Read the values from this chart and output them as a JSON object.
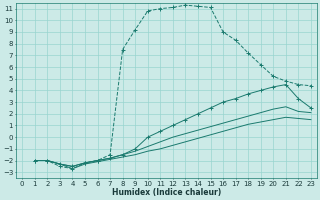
{
  "xlabel": "Humidex (Indice chaleur)",
  "bg_color": "#cceae7",
  "grid_color": "#99d5d0",
  "line_color": "#1a7a6e",
  "xlim": [
    -0.5,
    23.5
  ],
  "ylim": [
    -3.5,
    11.5
  ],
  "xticks": [
    0,
    1,
    2,
    3,
    4,
    5,
    6,
    7,
    8,
    9,
    10,
    11,
    12,
    13,
    14,
    15,
    16,
    17,
    18,
    19,
    20,
    21,
    22,
    23
  ],
  "yticks": [
    -3,
    -2,
    -1,
    0,
    1,
    2,
    3,
    4,
    5,
    6,
    7,
    8,
    9,
    10,
    11
  ],
  "curves": [
    {
      "x": [
        1,
        2,
        3,
        4,
        5,
        6,
        7,
        8,
        9,
        10,
        11,
        12,
        13,
        14,
        15,
        16,
        17,
        18,
        19,
        20,
        21,
        22,
        23
      ],
      "y": [
        -2,
        -2,
        -2.5,
        -2.7,
        -2.2,
        -2,
        -1.5,
        7.5,
        9.2,
        10.8,
        11.0,
        11.1,
        11.3,
        11.2,
        11.1,
        9.0,
        8.3,
        7.2,
        6.2,
        5.2,
        4.8,
        4.5,
        4.4
      ],
      "linestyle": "--",
      "marker": "+"
    },
    {
      "x": [
        1,
        2,
        3,
        4,
        5,
        6,
        7,
        8,
        9,
        10,
        11,
        12,
        13,
        14,
        15,
        16,
        17,
        18,
        19,
        20,
        21,
        22,
        23
      ],
      "y": [
        -2,
        -2,
        -2.3,
        -2.5,
        -2.2,
        -2,
        -1.8,
        -1.5,
        -1,
        0.0,
        0.5,
        1.0,
        1.5,
        2.0,
        2.5,
        3.0,
        3.3,
        3.7,
        4.0,
        4.3,
        4.5,
        3.3,
        2.5
      ],
      "linestyle": "-",
      "marker": "+"
    },
    {
      "x": [
        1,
        2,
        3,
        4,
        5,
        6,
        7,
        8,
        9,
        10,
        11,
        12,
        13,
        14,
        15,
        16,
        17,
        18,
        19,
        20,
        21,
        22,
        23
      ],
      "y": [
        -2,
        -2,
        -2.3,
        -2.5,
        -2.2,
        -2,
        -1.8,
        -1.5,
        -1.2,
        -0.8,
        -0.4,
        0.0,
        0.3,
        0.6,
        0.9,
        1.2,
        1.5,
        1.8,
        2.1,
        2.4,
        2.6,
        2.2,
        2.1
      ],
      "linestyle": "-",
      "marker": null
    },
    {
      "x": [
        1,
        2,
        3,
        4,
        5,
        6,
        7,
        8,
        9,
        10,
        11,
        12,
        13,
        14,
        15,
        16,
        17,
        18,
        19,
        20,
        21,
        22,
        23
      ],
      "y": [
        -2,
        -2,
        -2.3,
        -2.7,
        -2.3,
        -2.1,
        -1.9,
        -1.7,
        -1.5,
        -1.2,
        -1.0,
        -0.7,
        -0.4,
        -0.1,
        0.2,
        0.5,
        0.8,
        1.1,
        1.3,
        1.5,
        1.7,
        1.6,
        1.5
      ],
      "linestyle": "-",
      "marker": null
    }
  ]
}
